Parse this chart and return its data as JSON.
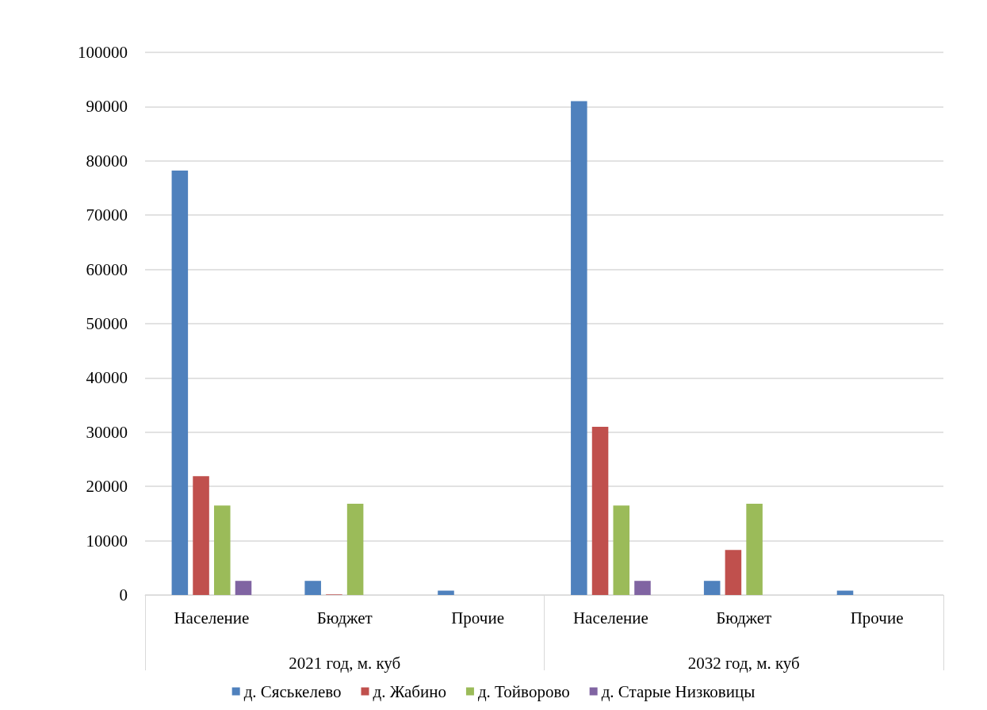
{
  "chart_data": {
    "type": "bar",
    "categories": [
      "Население",
      "Бюджет",
      "Прочие",
      "Население",
      "Бюджет",
      "Прочие"
    ],
    "annotations": [
      "2021 год, м. куб",
      "2032 год, м. куб"
    ],
    "series": [
      {
        "name": "д. Сяськелево",
        "color": "#4f81bd",
        "values": [
          78200,
          2600,
          800,
          91000,
          2600,
          800
        ]
      },
      {
        "name": "д. Жабино",
        "color": "#c0504d",
        "values": [
          21900,
          100,
          0,
          31000,
          8300,
          0
        ]
      },
      {
        "name": "д. Тойворово",
        "color": "#9bbb59",
        "values": [
          16500,
          16800,
          0,
          16500,
          16800,
          0
        ]
      },
      {
        "name": "д. Старые Низковицы",
        "color": "#8064a2",
        "values": [
          2600,
          0,
          0,
          2600,
          0,
          0
        ]
      }
    ],
    "ylim": [
      0,
      100000
    ],
    "yticks": [
      0,
      10000,
      20000,
      30000,
      40000,
      50000,
      60000,
      70000,
      80000,
      90000,
      100000
    ],
    "grid": "y",
    "legend": "bottom"
  }
}
